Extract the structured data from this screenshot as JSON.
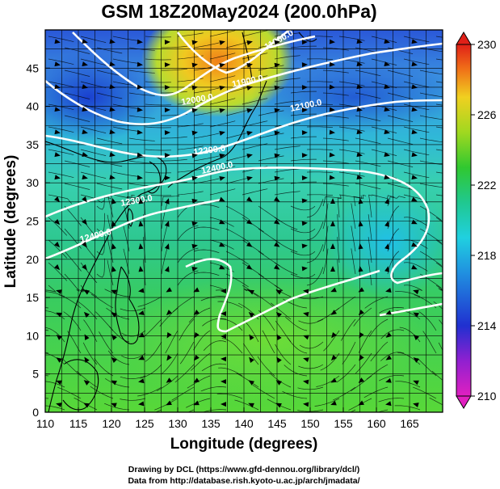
{
  "title": "GSM 18Z20May2024 (200.0hPa)",
  "axes": {
    "xlabel": "Longitude (degrees)",
    "ylabel": "Latitude  (degrees)",
    "xticks": [
      "110",
      "115",
      "120",
      "125",
      "130",
      "135",
      "140",
      "145",
      "150",
      "155",
      "160",
      "165"
    ],
    "yticks": [
      "0",
      "5",
      "10",
      "15",
      "20",
      "25",
      "30",
      "35",
      "40",
      "45"
    ],
    "xlim": [
      110,
      170
    ],
    "ylim": [
      0,
      50
    ]
  },
  "colorbar": {
    "ticks": [
      "210",
      "214",
      "218",
      "222",
      "226",
      "230"
    ],
    "range": [
      210,
      230
    ]
  },
  "contour_labels": [
    "12400.0",
    "12200.0",
    "12100.0",
    "12000.0",
    "11900.0",
    "11800.0",
    "12300.0",
    "12400.0"
  ],
  "credits": {
    "line1": "Drawing by DCL (https://www.gfd-dennou.org/library/dcl/)",
    "line2": "Data from http://database.rish.kyoto-u.ac.jp/arch/jmadata/"
  },
  "colors": {
    "background": "#ffffff",
    "contour": "#ffffff",
    "coast": "#000000"
  }
}
